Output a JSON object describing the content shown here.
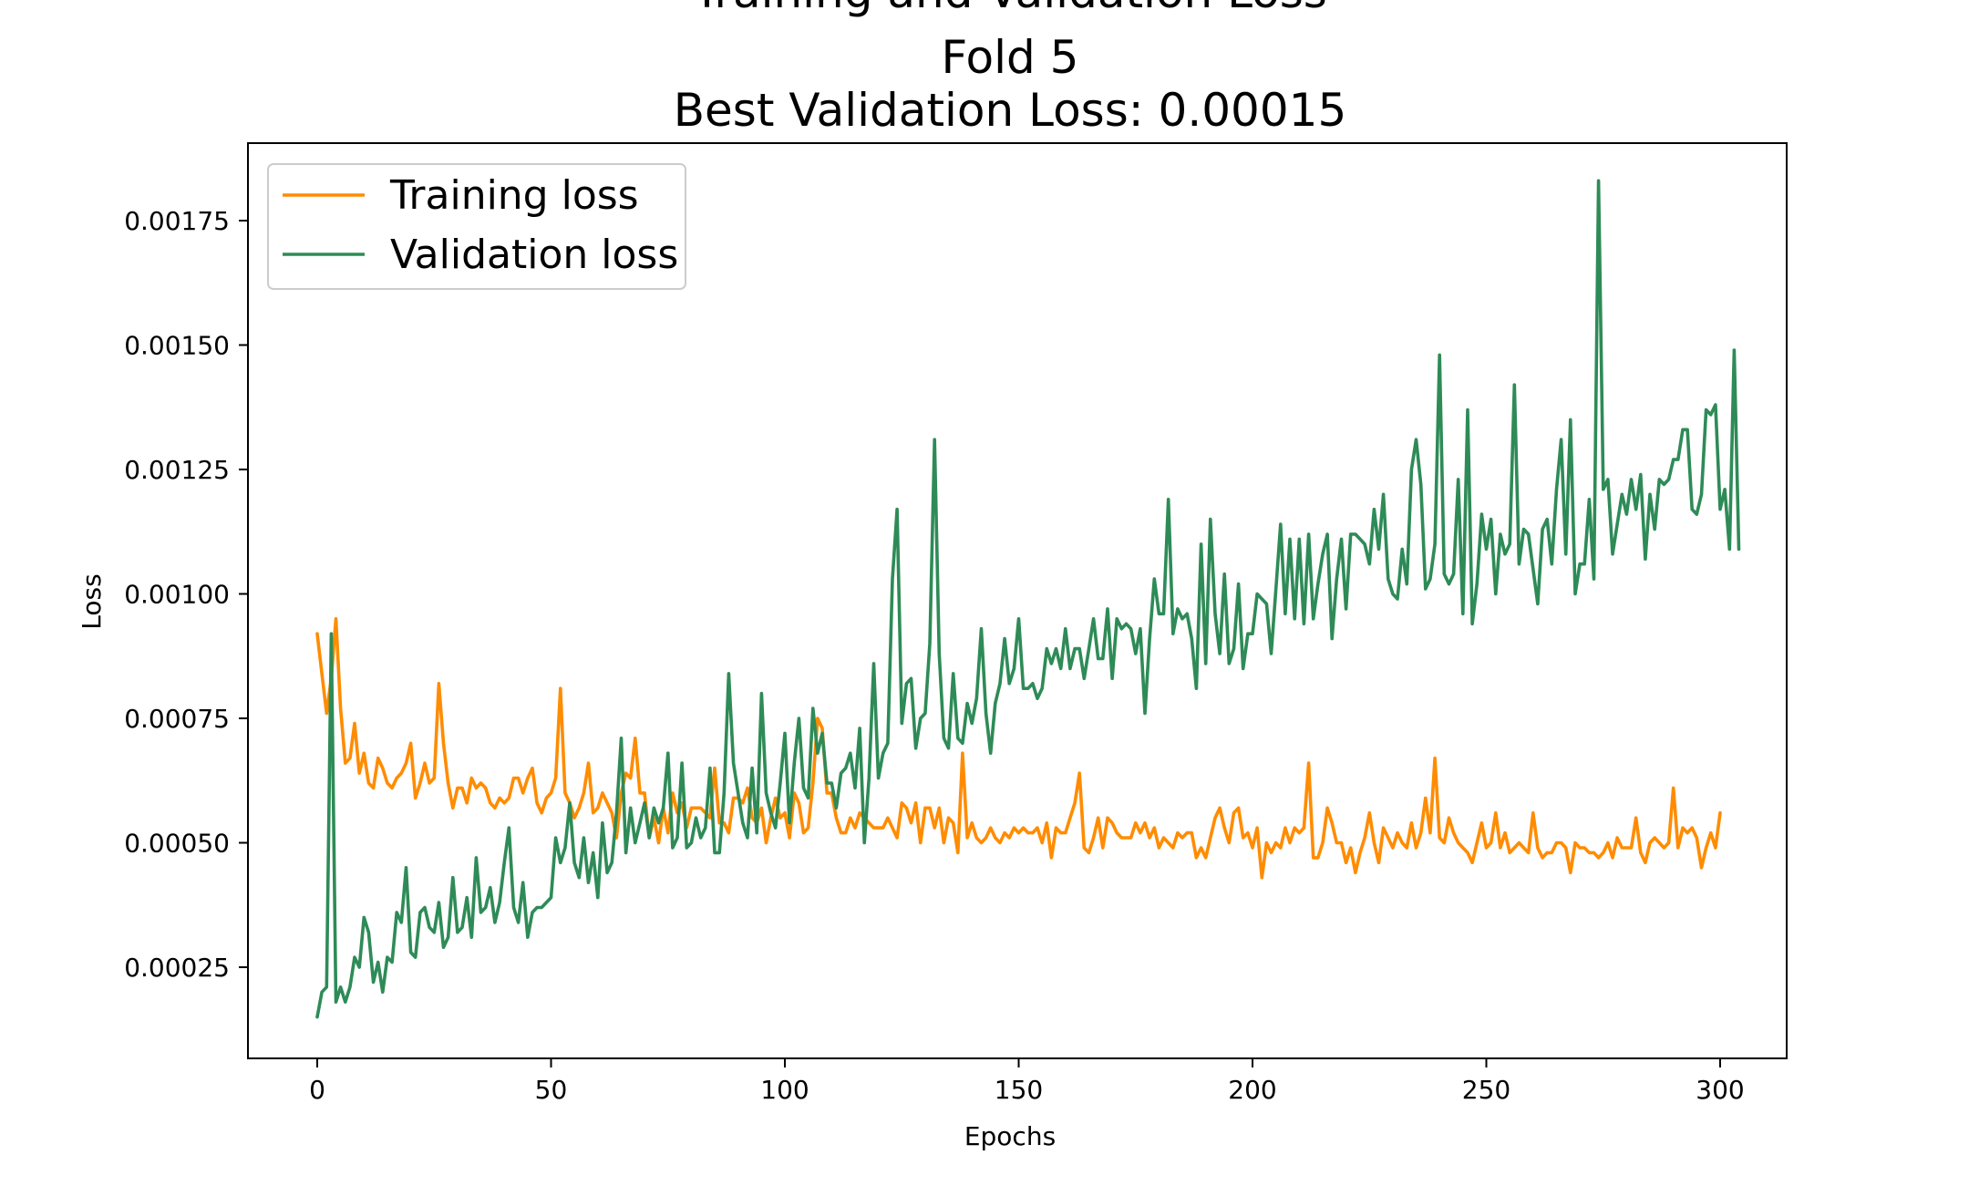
{
  "chart_data": {
    "type": "line",
    "title_lines": [
      "Training and Validation Loss",
      "Fold 5",
      "Best Validation Loss: 0.00015"
    ],
    "xlabel": "Epochs",
    "ylabel": "Loss",
    "xlim": [
      -15,
      315
    ],
    "ylim": [
      0.0,
      0.0019
    ],
    "xticks": [
      0,
      50,
      100,
      150,
      200,
      250,
      300
    ],
    "xtick_labels": [
      "0",
      "50",
      "100",
      "150",
      "200",
      "250",
      "300"
    ],
    "yticks": [
      0.00025,
      0.0005,
      0.00075,
      0.001,
      0.00125,
      0.0015,
      0.00175
    ],
    "ytick_labels": [
      "0.00025",
      "0.00050",
      "0.00075",
      "0.00100",
      "0.00125",
      "0.00150",
      "0.00175"
    ],
    "grid": false,
    "legend_position": "upper-left",
    "series": [
      {
        "name": "Training loss",
        "color": "#ff8c00",
        "x_start": 0,
        "values": [
          0.00092,
          0.00084,
          0.00076,
          0.00083,
          0.00095,
          0.00077,
          0.00066,
          0.00067,
          0.00074,
          0.00064,
          0.00068,
          0.00062,
          0.00061,
          0.00067,
          0.00065,
          0.00062,
          0.00061,
          0.00063,
          0.00064,
          0.00066,
          0.0007,
          0.00059,
          0.00062,
          0.00066,
          0.00062,
          0.00063,
          0.00082,
          0.0007,
          0.00062,
          0.00057,
          0.00061,
          0.00061,
          0.00058,
          0.00063,
          0.00061,
          0.00062,
          0.00061,
          0.00058,
          0.00057,
          0.00059,
          0.00058,
          0.00059,
          0.00063,
          0.00063,
          0.0006,
          0.00063,
          0.00065,
          0.00058,
          0.00056,
          0.00059,
          0.0006,
          0.00063,
          0.00081,
          0.0006,
          0.00058,
          0.00055,
          0.00057,
          0.0006,
          0.00066,
          0.00056,
          0.00057,
          0.0006,
          0.00058,
          0.00056,
          0.00051,
          0.0006,
          0.00064,
          0.00063,
          0.00071,
          0.0006,
          0.0006,
          0.00051,
          0.00055,
          0.0005,
          0.00057,
          0.00052,
          0.0006,
          0.00056,
          0.00058,
          0.00053,
          0.00057,
          0.00057,
          0.00057,
          0.00056,
          0.00055,
          0.00065,
          0.00054,
          0.00054,
          0.00052,
          0.00059,
          0.00059,
          0.00058,
          0.00061,
          0.00055,
          0.00054,
          0.00057,
          0.0005,
          0.00055,
          0.00059,
          0.00055,
          0.00056,
          0.00051,
          0.0006,
          0.00058,
          0.00052,
          0.00053,
          0.00062,
          0.00075,
          0.00073,
          0.0006,
          0.0006,
          0.00055,
          0.00052,
          0.00052,
          0.00055,
          0.00053,
          0.00056,
          0.00055,
          0.00054,
          0.00053,
          0.00053,
          0.00053,
          0.00055,
          0.00053,
          0.00051,
          0.00058,
          0.00057,
          0.00054,
          0.00058,
          0.0005,
          0.00057,
          0.00057,
          0.00053,
          0.00057,
          0.0005,
          0.00055,
          0.00054,
          0.00048,
          0.00068,
          0.00051,
          0.00054,
          0.00051,
          0.0005,
          0.00051,
          0.00053,
          0.00051,
          0.0005,
          0.00052,
          0.00051,
          0.00053,
          0.00052,
          0.00053,
          0.00052,
          0.00052,
          0.00053,
          0.0005,
          0.00054,
          0.00047,
          0.00053,
          0.00052,
          0.00052,
          0.00055,
          0.00058,
          0.00064,
          0.00049,
          0.00048,
          0.00051,
          0.00055,
          0.00049,
          0.00055,
          0.00054,
          0.00052,
          0.00051,
          0.00051,
          0.00051,
          0.00054,
          0.00052,
          0.00054,
          0.00051,
          0.00053,
          0.00049,
          0.00051,
          0.0005,
          0.00049,
          0.00052,
          0.00051,
          0.00052,
          0.00052,
          0.00047,
          0.00049,
          0.00047,
          0.00051,
          0.00055,
          0.00057,
          0.00053,
          0.0005,
          0.00056,
          0.00057,
          0.00051,
          0.00052,
          0.00049,
          0.00053,
          0.00043,
          0.0005,
          0.00048,
          0.0005,
          0.00049,
          0.00053,
          0.0005,
          0.00053,
          0.00052,
          0.00053,
          0.00066,
          0.00047,
          0.00047,
          0.0005,
          0.00057,
          0.00054,
          0.0005,
          0.0005,
          0.00046,
          0.00049,
          0.00044,
          0.00048,
          0.00051,
          0.00056,
          0.0005,
          0.00046,
          0.00053,
          0.00051,
          0.00049,
          0.00052,
          0.0005,
          0.00049,
          0.00054,
          0.00049,
          0.00052,
          0.00059,
          0.00052,
          0.00067,
          0.00051,
          0.0005,
          0.00055,
          0.00052,
          0.0005,
          0.00049,
          0.00048,
          0.00046,
          0.0005,
          0.00054,
          0.00049,
          0.0005,
          0.00056,
          0.00049,
          0.00052,
          0.00048,
          0.00049,
          0.0005,
          0.00049,
          0.00048,
          0.00056,
          0.00049,
          0.00047,
          0.00048,
          0.00048,
          0.0005,
          0.0005,
          0.00049,
          0.00044,
          0.0005,
          0.00049,
          0.00049,
          0.00048,
          0.00048,
          0.00047,
          0.00048,
          0.0005,
          0.00047,
          0.00051,
          0.00049,
          0.00049,
          0.00049,
          0.00055,
          0.00048,
          0.00046,
          0.0005,
          0.00051,
          0.0005,
          0.00049,
          0.0005,
          0.00061,
          0.00049,
          0.00053,
          0.00052,
          0.00053,
          0.00051,
          0.00045,
          0.00049,
          0.00052,
          0.00049,
          0.00056
        ]
      },
      {
        "name": "Validation loss",
        "color": "#2e8b57",
        "x_start": 0,
        "values": [
          0.00015,
          0.0002,
          0.00021,
          0.00092,
          0.00018,
          0.00021,
          0.00018,
          0.00021,
          0.00027,
          0.00025,
          0.00035,
          0.00032,
          0.00022,
          0.00026,
          0.0002,
          0.00027,
          0.00026,
          0.00036,
          0.00034,
          0.00045,
          0.00028,
          0.00027,
          0.00036,
          0.00037,
          0.00033,
          0.00032,
          0.00038,
          0.00029,
          0.00031,
          0.00043,
          0.00032,
          0.00033,
          0.00039,
          0.00031,
          0.00047,
          0.00036,
          0.00037,
          0.00041,
          0.00034,
          0.00038,
          0.00046,
          0.00053,
          0.00037,
          0.00034,
          0.00042,
          0.00031,
          0.00036,
          0.00037,
          0.00037,
          0.00038,
          0.00039,
          0.00051,
          0.00046,
          0.00049,
          0.00058,
          0.00046,
          0.00043,
          0.00051,
          0.00042,
          0.00048,
          0.00039,
          0.00054,
          0.00044,
          0.00046,
          0.00056,
          0.00071,
          0.00048,
          0.00057,
          0.0005,
          0.00054,
          0.00058,
          0.00051,
          0.00057,
          0.00054,
          0.00057,
          0.00068,
          0.00049,
          0.00051,
          0.00066,
          0.00049,
          0.0005,
          0.00055,
          0.00051,
          0.00053,
          0.00065,
          0.00048,
          0.00048,
          0.0006,
          0.00084,
          0.00066,
          0.0006,
          0.00054,
          0.00051,
          0.00065,
          0.00052,
          0.0008,
          0.0006,
          0.00056,
          0.00053,
          0.00062,
          0.00072,
          0.00054,
          0.00066,
          0.00075,
          0.00061,
          0.00059,
          0.00077,
          0.00068,
          0.00072,
          0.00062,
          0.00062,
          0.00057,
          0.00064,
          0.00065,
          0.00068,
          0.00061,
          0.00073,
          0.0005,
          0.00063,
          0.00086,
          0.00063,
          0.00068,
          0.0007,
          0.00103,
          0.00117,
          0.00074,
          0.00082,
          0.00083,
          0.00069,
          0.00075,
          0.00076,
          0.0009,
          0.00131,
          0.00088,
          0.00071,
          0.00069,
          0.00084,
          0.00071,
          0.0007,
          0.00078,
          0.00074,
          0.00079,
          0.00093,
          0.00076,
          0.00068,
          0.00078,
          0.00082,
          0.00091,
          0.00082,
          0.00085,
          0.00095,
          0.00081,
          0.00081,
          0.00082,
          0.00079,
          0.00081,
          0.00089,
          0.00086,
          0.00089,
          0.00085,
          0.00093,
          0.00085,
          0.00089,
          0.00089,
          0.00083,
          0.00089,
          0.00095,
          0.00087,
          0.00087,
          0.00097,
          0.00083,
          0.00095,
          0.00093,
          0.00094,
          0.00093,
          0.00088,
          0.00093,
          0.00076,
          0.00091,
          0.00103,
          0.00096,
          0.00096,
          0.00119,
          0.00092,
          0.00097,
          0.00095,
          0.00096,
          0.00091,
          0.00081,
          0.0011,
          0.00086,
          0.00115,
          0.00096,
          0.00088,
          0.00104,
          0.00086,
          0.00089,
          0.00102,
          0.00085,
          0.00092,
          0.00092,
          0.001,
          0.00099,
          0.00098,
          0.00088,
          0.00101,
          0.00114,
          0.00096,
          0.00111,
          0.00095,
          0.00111,
          0.00094,
          0.00112,
          0.00095,
          0.00102,
          0.00108,
          0.00112,
          0.00091,
          0.00103,
          0.00111,
          0.00097,
          0.00112,
          0.00112,
          0.00111,
          0.0011,
          0.00106,
          0.00117,
          0.00109,
          0.0012,
          0.00103,
          0.001,
          0.00099,
          0.00109,
          0.00102,
          0.00125,
          0.00131,
          0.00122,
          0.00101,
          0.00103,
          0.0011,
          0.00148,
          0.00104,
          0.00102,
          0.00104,
          0.00123,
          0.00096,
          0.00137,
          0.00094,
          0.00102,
          0.00116,
          0.00109,
          0.00115,
          0.001,
          0.00112,
          0.00108,
          0.0011,
          0.00142,
          0.00106,
          0.00113,
          0.00112,
          0.00105,
          0.00098,
          0.00113,
          0.00115,
          0.00106,
          0.00121,
          0.00131,
          0.00108,
          0.00135,
          0.001,
          0.00106,
          0.00106,
          0.00119,
          0.00103,
          0.00183,
          0.00121,
          0.00123,
          0.00108,
          0.00114,
          0.0012,
          0.00116,
          0.00123,
          0.00117,
          0.00124,
          0.00107,
          0.0012,
          0.00113,
          0.00123,
          0.00122,
          0.00123,
          0.00127,
          0.00127,
          0.00133,
          0.00133,
          0.00117,
          0.00116,
          0.0012,
          0.00137,
          0.00136,
          0.00138,
          0.00117,
          0.00121,
          0.00109,
          0.00149,
          0.00109
        ]
      }
    ]
  }
}
